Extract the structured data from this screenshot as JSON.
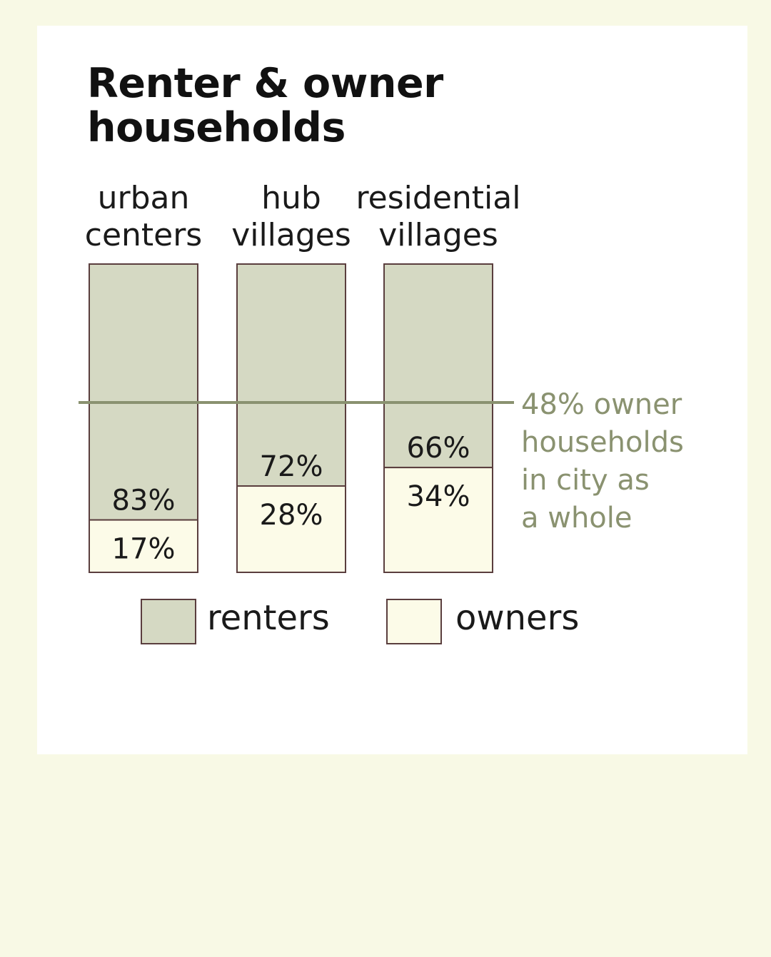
{
  "chart_data": {
    "type": "bar",
    "stacked": true,
    "title": "Renter & owner households",
    "categories": [
      [
        "urban",
        "centers"
      ],
      [
        "hub",
        "villages"
      ],
      [
        "residential",
        "villages"
      ]
    ],
    "series": [
      {
        "name": "renters",
        "values": [
          83,
          72,
          66
        ],
        "color": "#d5d9c3"
      },
      {
        "name": "owners",
        "values": [
          17,
          28,
          34
        ],
        "color": "#fcfbe8"
      }
    ],
    "value_labels": {
      "renters": [
        "83%",
        "72%",
        "66%"
      ],
      "owners": [
        "17%",
        "28%",
        "34%"
      ]
    },
    "reference_line": {
      "value": 48,
      "label": [
        "48% owner",
        "households",
        "in city as",
        "a whole"
      ],
      "color": "#8a9270"
    },
    "ylim": [
      0,
      100
    ],
    "legend": {
      "position": "bottom"
    },
    "grid": false,
    "bar_stroke_color": "#5a3e3e"
  }
}
